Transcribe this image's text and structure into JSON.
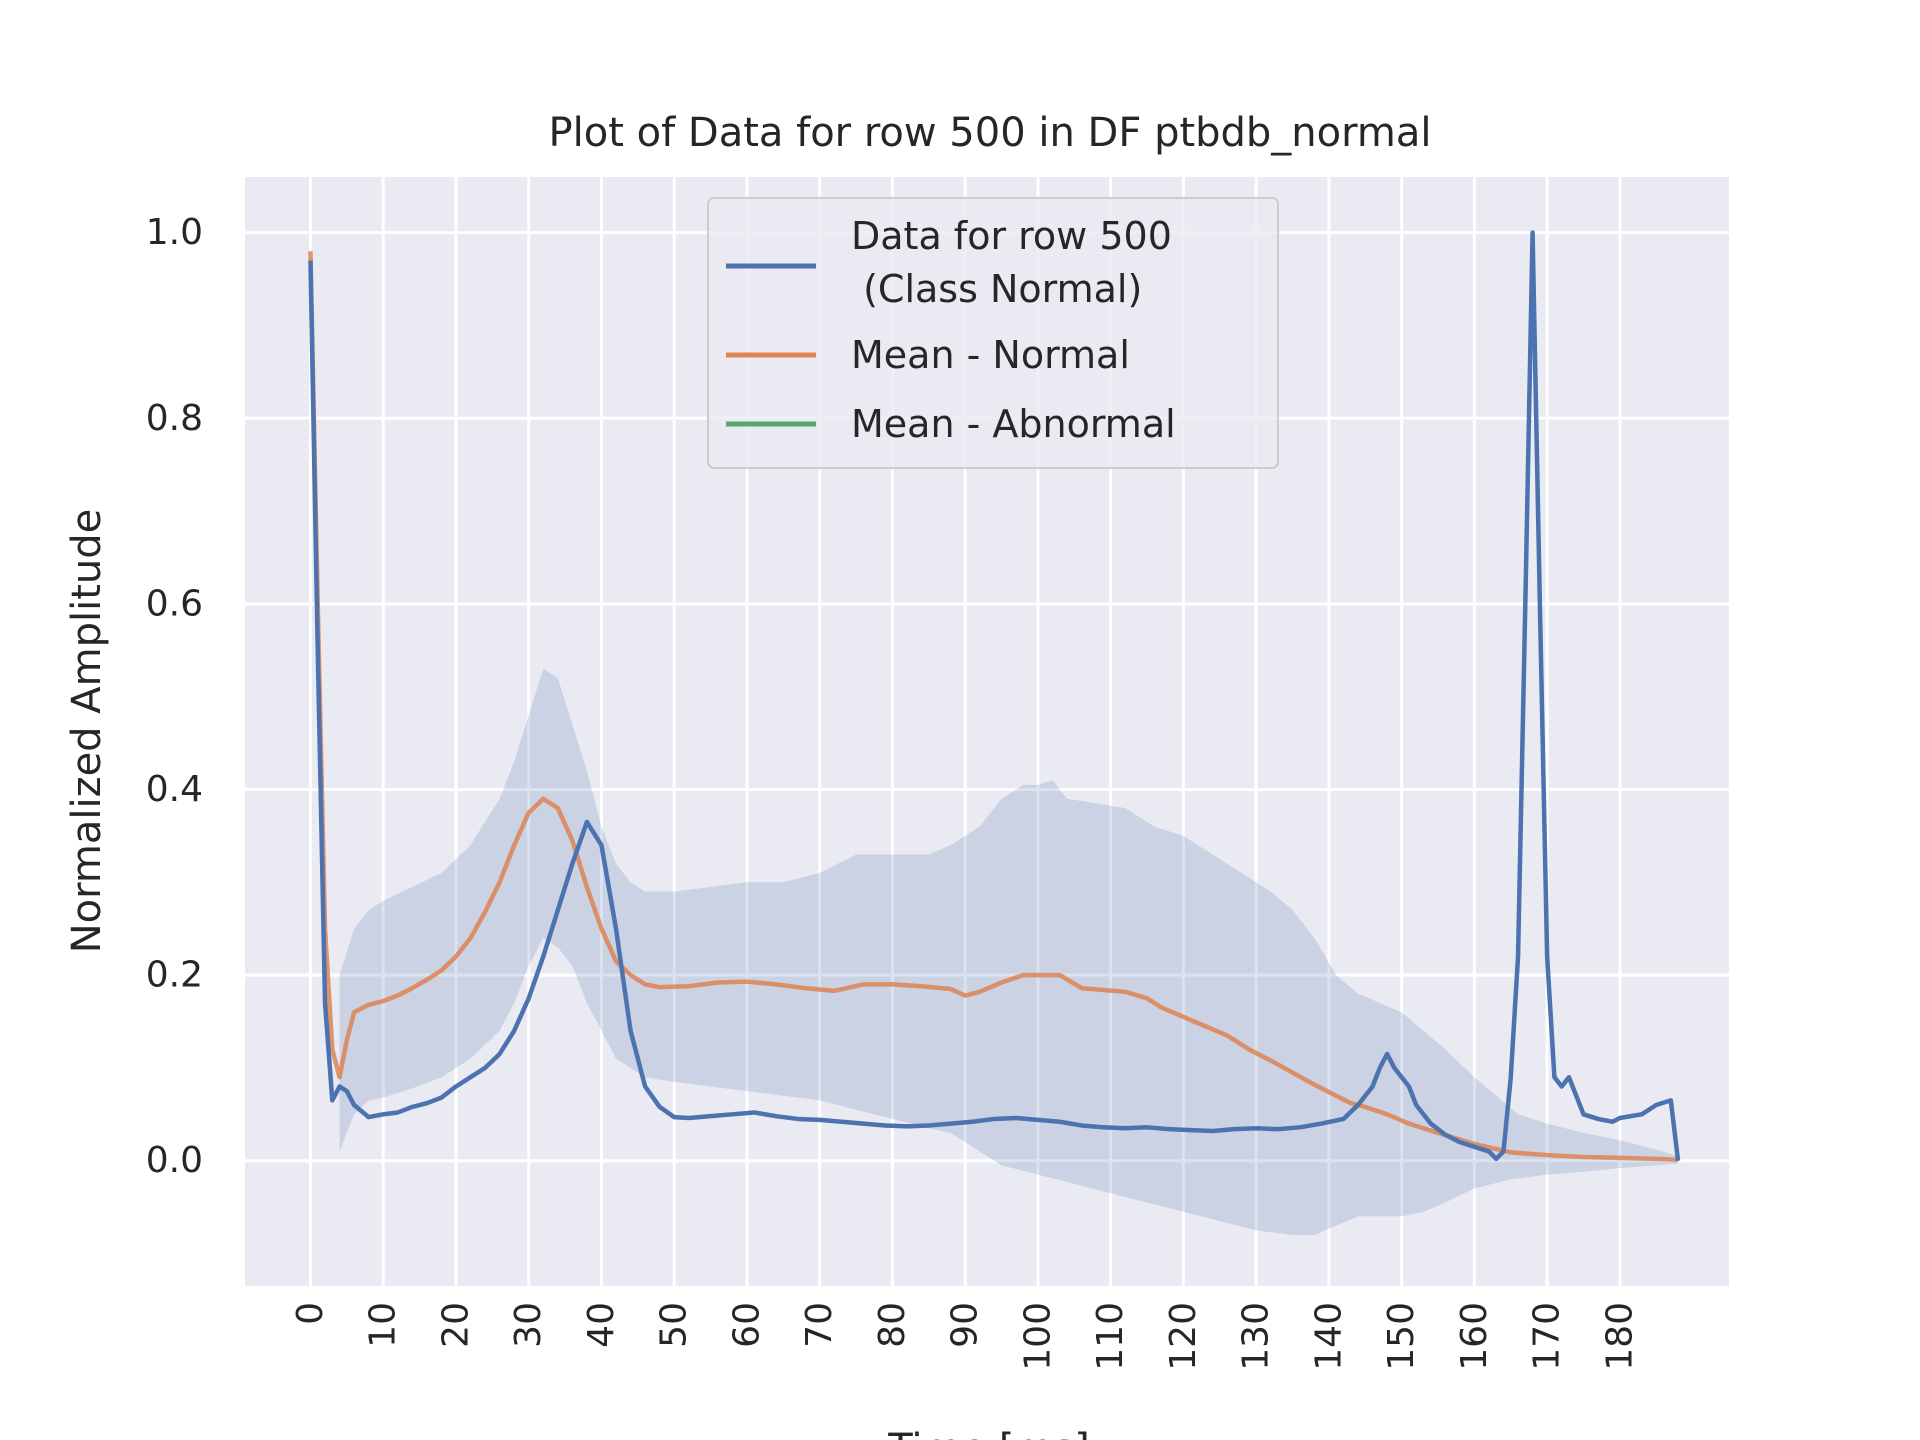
{
  "chart_data": {
    "type": "line",
    "title": "Plot of Data for row 500 in DF ptbdb_normal",
    "xlabel": "Time [ms]",
    "ylabel": "Normalized Amplitude",
    "xlim": [
      -9,
      195
    ],
    "ylim": [
      -0.135,
      1.06
    ],
    "xticks": [
      0,
      10,
      20,
      30,
      40,
      50,
      60,
      70,
      80,
      90,
      100,
      110,
      120,
      130,
      140,
      150,
      160,
      170,
      180
    ],
    "yticks": [
      0.0,
      0.2,
      0.4,
      0.6,
      0.8,
      1.0
    ],
    "ytick_labels": [
      "0.0",
      "0.2",
      "0.4",
      "0.6",
      "0.8",
      "1.0"
    ],
    "grid": true,
    "legend": {
      "placement": "upper-center",
      "entries": [
        {
          "label": "Data for row 500\n (Class Normal)",
          "color": "#4c72b0"
        },
        {
          "label": "Mean - Normal",
          "color": "#dd8452"
        },
        {
          "label": "Mean - Abnormal",
          "color": "#55a868"
        }
      ]
    },
    "colors": {
      "background": "#eaeaf2",
      "grid": "#ffffff",
      "band": "#4c72b0"
    },
    "series": [
      {
        "name": "Data for row 500\n (Class Normal)",
        "color": "#4c72b0",
        "points": [
          [
            0,
            0.97
          ],
          [
            1,
            0.55
          ],
          [
            2,
            0.17
          ],
          [
            3,
            0.065
          ],
          [
            4,
            0.08
          ],
          [
            5,
            0.075
          ],
          [
            6,
            0.06
          ],
          [
            8,
            0.047
          ],
          [
            10,
            0.05
          ],
          [
            12,
            0.052
          ],
          [
            14,
            0.058
          ],
          [
            16,
            0.062
          ],
          [
            18,
            0.068
          ],
          [
            20,
            0.08
          ],
          [
            22,
            0.09
          ],
          [
            24,
            0.1
          ],
          [
            26,
            0.115
          ],
          [
            28,
            0.14
          ],
          [
            30,
            0.175
          ],
          [
            32,
            0.22
          ],
          [
            34,
            0.27
          ],
          [
            36,
            0.32
          ],
          [
            38,
            0.365
          ],
          [
            40,
            0.34
          ],
          [
            42,
            0.25
          ],
          [
            44,
            0.14
          ],
          [
            46,
            0.08
          ],
          [
            48,
            0.058
          ],
          [
            50,
            0.047
          ],
          [
            52,
            0.046
          ],
          [
            55,
            0.048
          ],
          [
            58,
            0.05
          ],
          [
            61,
            0.052
          ],
          [
            64,
            0.048
          ],
          [
            67,
            0.045
          ],
          [
            70,
            0.044
          ],
          [
            73,
            0.042
          ],
          [
            76,
            0.04
          ],
          [
            79,
            0.038
          ],
          [
            82,
            0.037
          ],
          [
            85,
            0.038
          ],
          [
            88,
            0.04
          ],
          [
            91,
            0.042
          ],
          [
            94,
            0.045
          ],
          [
            97,
            0.046
          ],
          [
            100,
            0.044
          ],
          [
            103,
            0.042
          ],
          [
            106,
            0.038
          ],
          [
            109,
            0.036
          ],
          [
            112,
            0.035
          ],
          [
            115,
            0.036
          ],
          [
            118,
            0.034
          ],
          [
            121,
            0.033
          ],
          [
            124,
            0.032
          ],
          [
            127,
            0.034
          ],
          [
            130,
            0.035
          ],
          [
            133,
            0.034
          ],
          [
            136,
            0.036
          ],
          [
            139,
            0.04
          ],
          [
            142,
            0.045
          ],
          [
            144,
            0.06
          ],
          [
            146,
            0.08
          ],
          [
            147,
            0.1
          ],
          [
            148,
            0.115
          ],
          [
            149,
            0.1
          ],
          [
            151,
            0.08
          ],
          [
            152,
            0.06
          ],
          [
            154,
            0.04
          ],
          [
            156,
            0.028
          ],
          [
            158,
            0.02
          ],
          [
            160,
            0.015
          ],
          [
            162,
            0.01
          ],
          [
            163,
            0.002
          ],
          [
            164,
            0.01
          ],
          [
            165,
            0.09
          ],
          [
            166,
            0.22
          ],
          [
            167,
            0.6
          ],
          [
            168,
            1.0
          ],
          [
            169,
            0.6
          ],
          [
            170,
            0.22
          ],
          [
            171,
            0.09
          ],
          [
            172,
            0.08
          ],
          [
            173,
            0.09
          ],
          [
            175,
            0.05
          ],
          [
            177,
            0.045
          ],
          [
            179,
            0.042
          ],
          [
            180,
            0.046
          ],
          [
            183,
            0.05
          ],
          [
            185,
            0.06
          ],
          [
            187,
            0.065
          ],
          [
            188,
            0.0
          ]
        ]
      },
      {
        "name": "Mean - Normal",
        "color": "#dd8452",
        "points": [
          [
            0,
            0.98
          ],
          [
            1,
            0.6
          ],
          [
            2,
            0.25
          ],
          [
            3,
            0.12
          ],
          [
            4,
            0.09
          ],
          [
            5,
            0.13
          ],
          [
            6,
            0.16
          ],
          [
            8,
            0.168
          ],
          [
            10,
            0.172
          ],
          [
            12,
            0.178
          ],
          [
            14,
            0.186
          ],
          [
            16,
            0.195
          ],
          [
            18,
            0.205
          ],
          [
            20,
            0.22
          ],
          [
            22,
            0.24
          ],
          [
            24,
            0.268
          ],
          [
            26,
            0.3
          ],
          [
            28,
            0.34
          ],
          [
            30,
            0.375
          ],
          [
            32,
            0.39
          ],
          [
            34,
            0.38
          ],
          [
            36,
            0.345
          ],
          [
            38,
            0.295
          ],
          [
            40,
            0.25
          ],
          [
            42,
            0.215
          ],
          [
            44,
            0.2
          ],
          [
            46,
            0.19
          ],
          [
            48,
            0.187
          ],
          [
            52,
            0.188
          ],
          [
            56,
            0.192
          ],
          [
            60,
            0.193
          ],
          [
            64,
            0.19
          ],
          [
            68,
            0.186
          ],
          [
            72,
            0.183
          ],
          [
            76,
            0.19
          ],
          [
            80,
            0.19
          ],
          [
            84,
            0.188
          ],
          [
            88,
            0.185
          ],
          [
            90,
            0.178
          ],
          [
            92,
            0.182
          ],
          [
            95,
            0.192
          ],
          [
            98,
            0.2
          ],
          [
            100,
            0.2
          ],
          [
            103,
            0.2
          ],
          [
            106,
            0.186
          ],
          [
            109,
            0.184
          ],
          [
            112,
            0.182
          ],
          [
            115,
            0.175
          ],
          [
            117,
            0.165
          ],
          [
            120,
            0.155
          ],
          [
            123,
            0.145
          ],
          [
            126,
            0.135
          ],
          [
            129,
            0.12
          ],
          [
            132,
            0.108
          ],
          [
            135,
            0.095
          ],
          [
            138,
            0.082
          ],
          [
            141,
            0.07
          ],
          [
            143,
            0.062
          ],
          [
            145,
            0.058
          ],
          [
            148,
            0.05
          ],
          [
            151,
            0.04
          ],
          [
            155,
            0.03
          ],
          [
            160,
            0.018
          ],
          [
            165,
            0.009
          ],
          [
            170,
            0.006
          ],
          [
            175,
            0.004
          ],
          [
            180,
            0.003
          ],
          [
            185,
            0.002
          ],
          [
            188,
            0.001
          ]
        ]
      },
      {
        "name": "Mean - Abnormal",
        "color": "#55a868",
        "points": []
      }
    ],
    "band": {
      "series": "Mean - Normal",
      "upper": [
        [
          4,
          0.2
        ],
        [
          6,
          0.25
        ],
        [
          8,
          0.27
        ],
        [
          10,
          0.28
        ],
        [
          14,
          0.295
        ],
        [
          18,
          0.31
        ],
        [
          22,
          0.34
        ],
        [
          26,
          0.39
        ],
        [
          28,
          0.43
        ],
        [
          30,
          0.48
        ],
        [
          32,
          0.53
        ],
        [
          34,
          0.52
        ],
        [
          36,
          0.47
        ],
        [
          38,
          0.42
        ],
        [
          40,
          0.36
        ],
        [
          42,
          0.32
        ],
        [
          44,
          0.3
        ],
        [
          46,
          0.29
        ],
        [
          50,
          0.29
        ],
        [
          55,
          0.295
        ],
        [
          60,
          0.3
        ],
        [
          65,
          0.3
        ],
        [
          70,
          0.31
        ],
        [
          75,
          0.33
        ],
        [
          80,
          0.33
        ],
        [
          85,
          0.33
        ],
        [
          88,
          0.34
        ],
        [
          92,
          0.36
        ],
        [
          95,
          0.39
        ],
        [
          98,
          0.405
        ],
        [
          100,
          0.405
        ],
        [
          102,
          0.41
        ],
        [
          104,
          0.39
        ],
        [
          108,
          0.385
        ],
        [
          112,
          0.38
        ],
        [
          116,
          0.36
        ],
        [
          120,
          0.35
        ],
        [
          124,
          0.33
        ],
        [
          128,
          0.31
        ],
        [
          132,
          0.29
        ],
        [
          135,
          0.27
        ],
        [
          138,
          0.24
        ],
        [
          141,
          0.2
        ],
        [
          144,
          0.18
        ],
        [
          147,
          0.17
        ],
        [
          150,
          0.16
        ],
        [
          153,
          0.14
        ],
        [
          156,
          0.12
        ],
        [
          160,
          0.09
        ],
        [
          163,
          0.07
        ],
        [
          166,
          0.05
        ],
        [
          170,
          0.04
        ],
        [
          175,
          0.03
        ],
        [
          180,
          0.022
        ],
        [
          185,
          0.012
        ],
        [
          188,
          0.005
        ]
      ],
      "lower": [
        [
          4,
          0.01
        ],
        [
          6,
          0.05
        ],
        [
          8,
          0.065
        ],
        [
          10,
          0.068
        ],
        [
          14,
          0.078
        ],
        [
          18,
          0.09
        ],
        [
          22,
          0.11
        ],
        [
          26,
          0.14
        ],
        [
          28,
          0.17
        ],
        [
          30,
          0.21
        ],
        [
          32,
          0.24
        ],
        [
          34,
          0.23
        ],
        [
          36,
          0.21
        ],
        [
          38,
          0.17
        ],
        [
          40,
          0.14
        ],
        [
          42,
          0.11
        ],
        [
          44,
          0.1
        ],
        [
          46,
          0.09
        ],
        [
          50,
          0.085
        ],
        [
          55,
          0.08
        ],
        [
          60,
          0.075
        ],
        [
          65,
          0.07
        ],
        [
          70,
          0.065
        ],
        [
          75,
          0.055
        ],
        [
          80,
          0.045
        ],
        [
          85,
          0.035
        ],
        [
          88,
          0.03
        ],
        [
          92,
          0.01
        ],
        [
          95,
          -0.005
        ],
        [
          100,
          -0.015
        ],
        [
          105,
          -0.025
        ],
        [
          110,
          -0.035
        ],
        [
          115,
          -0.045
        ],
        [
          120,
          -0.055
        ],
        [
          125,
          -0.065
        ],
        [
          130,
          -0.075
        ],
        [
          135,
          -0.08
        ],
        [
          138,
          -0.08
        ],
        [
          141,
          -0.07
        ],
        [
          144,
          -0.06
        ],
        [
          147,
          -0.06
        ],
        [
          150,
          -0.06
        ],
        [
          153,
          -0.055
        ],
        [
          156,
          -0.045
        ],
        [
          160,
          -0.03
        ],
        [
          165,
          -0.02
        ],
        [
          170,
          -0.015
        ],
        [
          175,
          -0.012
        ],
        [
          180,
          -0.008
        ],
        [
          185,
          -0.005
        ],
        [
          188,
          -0.003
        ]
      ]
    }
  }
}
